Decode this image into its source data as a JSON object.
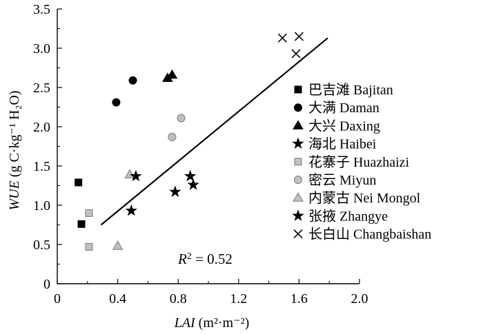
{
  "chart_data": {
    "type": "scatter",
    "xlabel": {
      "var": "LAI",
      "unit": "(m²·m⁻²)"
    },
    "ylabel": {
      "var": "WUE",
      "unit": "(g C·kg⁻¹ H₂O)"
    },
    "xlim": [
      0,
      2.0
    ],
    "ylim": [
      0,
      3.5
    ],
    "xticks": [
      "0",
      "0.4",
      "0.8",
      "1.2",
      "1.6",
      "2.0"
    ],
    "yticks": [
      "0",
      "0.5",
      "1.0",
      "1.5",
      "2.0",
      "2.5",
      "3.0",
      "3.5"
    ],
    "series": [
      {
        "name": "巴吉滩 Bajitan",
        "marker": "square",
        "color": "#000000",
        "points": [
          [
            0.14,
            1.29
          ],
          [
            0.16,
            0.76
          ]
        ]
      },
      {
        "name": "大满 Daman",
        "marker": "circle",
        "color": "#000000",
        "points": [
          [
            0.39,
            2.31
          ],
          [
            0.5,
            2.59
          ]
        ]
      },
      {
        "name": "大兴 Daxing",
        "marker": "triangle",
        "color": "#000000",
        "points": [
          [
            0.73,
            2.62
          ],
          [
            0.76,
            2.66
          ]
        ]
      },
      {
        "name": "海北 Haibei",
        "marker": "star",
        "color": "#000000",
        "points": [
          [
            0.49,
            0.93
          ],
          [
            0.78,
            1.17
          ],
          [
            0.88,
            1.37
          ],
          [
            0.9,
            1.26
          ]
        ]
      },
      {
        "name": "花寨子 Huazhaizi",
        "marker": "square",
        "color": "#c0c0c0",
        "points": [
          [
            0.21,
            0.9
          ],
          [
            0.21,
            0.47
          ]
        ]
      },
      {
        "name": "密云 Miyun",
        "marker": "circle",
        "color": "#c0c0c0",
        "points": [
          [
            0.76,
            1.87
          ],
          [
            0.82,
            2.11
          ]
        ]
      },
      {
        "name": "内蒙古 Nei Mongol",
        "marker": "triangle",
        "color": "#c0c0c0",
        "points": [
          [
            0.4,
            0.48
          ],
          [
            0.48,
            1.39
          ]
        ]
      },
      {
        "name": "张掖 Zhangye",
        "marker": "star",
        "color": "#000000",
        "points": [
          [
            0.52,
            1.37
          ]
        ]
      },
      {
        "name": "长白山 Changbaishan",
        "marker": "x",
        "color": "#000000",
        "points": [
          [
            1.49,
            3.13
          ],
          [
            1.58,
            2.93
          ],
          [
            1.6,
            3.15
          ]
        ]
      }
    ],
    "regression_line": {
      "x": [
        0.29,
        1.79
      ],
      "y": [
        0.75,
        3.13
      ]
    },
    "annotation": {
      "R": "R",
      "sup": "2",
      "rest": " = 0.52"
    },
    "legend": "right"
  }
}
